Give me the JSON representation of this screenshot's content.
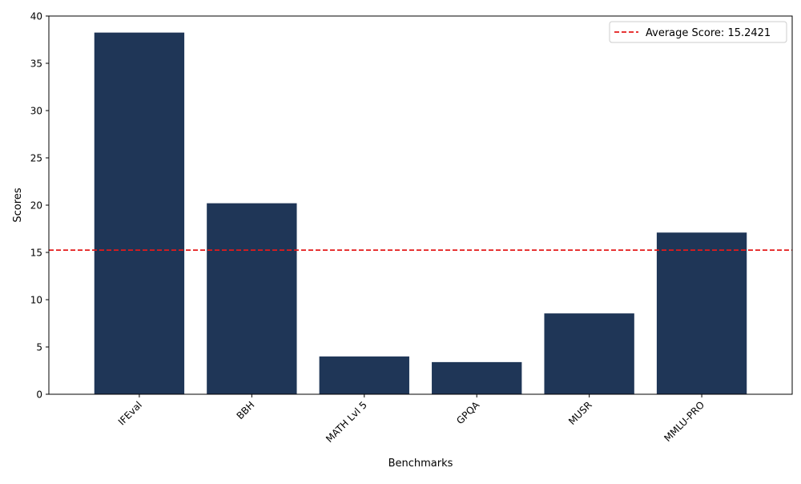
{
  "chart_data": {
    "type": "bar",
    "categories": [
      "IFEval",
      "BBH",
      "MATH Lvl 5",
      "GPQA",
      "MUSR",
      "MMLU-PRO"
    ],
    "values": [
      38.25,
      20.2,
      4.0,
      3.4,
      8.55,
      17.1
    ],
    "xlabel": "Benchmarks",
    "ylabel": "Scores",
    "ylim": [
      0,
      40
    ],
    "yticks": [
      0,
      5,
      10,
      15,
      20,
      25,
      30,
      35,
      40
    ],
    "bar_color": "#1f3657",
    "grid": false,
    "reference_line": {
      "value": 15.2421,
      "label": "Average Score: 15.2421",
      "color": "#e41a1a",
      "style": "dashed"
    },
    "legend_position": "top-right"
  }
}
